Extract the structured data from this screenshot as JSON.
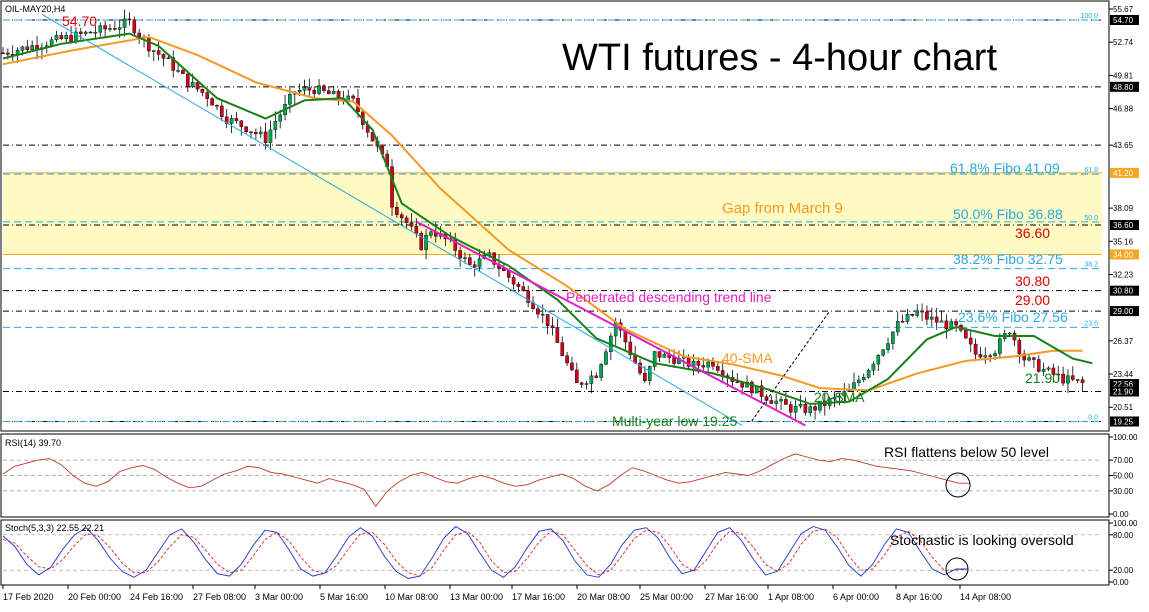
{
  "chart_data": {
    "type": "candlestick",
    "symbol_label": "OIL-MAY20,H4",
    "title": "WTI futures - 4-hour chart",
    "x_ticks": [
      "17 Feb 2020",
      "20 Feb 00:00",
      "24 Feb 16:00",
      "27 Feb 08:00",
      "3 Mar 00:00",
      "5 Mar 16:00",
      "10 Mar 08:00",
      "13 Mar 00:00",
      "17 Mar 16:00",
      "20 Mar 08:00",
      "25 Mar 00:00",
      "27 Mar 16:00",
      "1 Apr 08:00",
      "6 Apr 00:00",
      "8 Apr 16:00",
      "14 Apr 08:00"
    ],
    "price_axis": {
      "ylim": [
        18.5,
        56.2
      ],
      "ticks": [
        "55.67",
        "52.74",
        "49.81",
        "46.88",
        "43.65",
        "38.09",
        "35.16",
        "32.23",
        "26.37",
        "23.44",
        "20.51"
      ],
      "highlight_labels": [
        {
          "text": "54.70",
          "value": 54.7,
          "bg": "#000000"
        },
        {
          "text": "48.80",
          "value": 48.8,
          "bg": "#000000"
        },
        {
          "text": "41.20",
          "value": 41.2,
          "bg": "#f5a623"
        },
        {
          "text": "36.60",
          "value": 36.6,
          "bg": "#000000"
        },
        {
          "text": "34.00",
          "value": 34.0,
          "bg": "#f5a623"
        },
        {
          "text": "30.80",
          "value": 30.8,
          "bg": "#000000"
        },
        {
          "text": "29.00",
          "value": 29.0,
          "bg": "#000000"
        },
        {
          "text": "22.56",
          "value": 22.56,
          "bg": "#000000"
        },
        {
          "text": "21.90",
          "value": 21.9,
          "bg": "#000000"
        },
        {
          "text": "19.25",
          "value": 19.25,
          "bg": "#000000"
        }
      ]
    },
    "horizontal_levels": [
      54.7,
      48.8,
      43.65,
      36.6,
      30.8,
      29.0,
      21.9,
      19.25
    ],
    "fibo_levels": [
      {
        "value": 54.7,
        "tag": "100.0"
      },
      {
        "value": 41.09,
        "tag": "61.8"
      },
      {
        "value": 36.88,
        "tag": "50.0"
      },
      {
        "value": 32.75,
        "tag": "38.2"
      },
      {
        "value": 27.56,
        "tag": "23.6"
      },
      {
        "value": 19.25,
        "tag": "0.0"
      }
    ],
    "gap_zone": [
      34.0,
      41.2
    ],
    "annotations": {
      "top_high": "54.70",
      "fibo618": "61.8% Fibo 41.09",
      "gap": "Gap from March 9",
      "fibo50": "50.0% Fibo 36.88",
      "lvl3660": "36.60",
      "fibo382": "38.2% Fibo 32.75",
      "lvl3080": "30.80",
      "trendline": "Penetrated descending trend line",
      "lvl2900": "29.00",
      "fibo236": "23.6% Fibo 27.56",
      "sma40": "40-SMA",
      "lvl2190": "21.90",
      "sma20": "20-SMA",
      "low": "Multi-year low 19.25"
    },
    "close_path": [
      [
        0,
        51.8
      ],
      [
        8,
        52.6
      ],
      [
        16,
        53.4
      ],
      [
        22,
        54.0
      ],
      [
        26,
        54.5
      ],
      [
        30,
        52.4
      ],
      [
        34,
        51.0
      ],
      [
        38,
        49.2
      ],
      [
        42,
        48.0
      ],
      [
        46,
        46.0
      ],
      [
        50,
        45.2
      ],
      [
        54,
        44.2
      ],
      [
        56,
        45.8
      ],
      [
        58,
        47.0
      ],
      [
        60,
        48.4
      ],
      [
        64,
        48.6
      ],
      [
        68,
        48.0
      ],
      [
        72,
        47.5
      ],
      [
        75,
        45.0
      ],
      [
        78,
        42.5
      ],
      [
        79,
        42.0
      ],
      [
        80,
        38.5
      ],
      [
        83,
        36.8
      ],
      [
        86,
        34.8
      ],
      [
        88,
        36.2
      ],
      [
        92,
        35.0
      ],
      [
        96,
        33.0
      ],
      [
        100,
        33.8
      ],
      [
        104,
        32.0
      ],
      [
        108,
        30.2
      ],
      [
        112,
        28.0
      ],
      [
        116,
        24.3
      ],
      [
        118,
        22.5
      ],
      [
        122,
        23.5
      ],
      [
        126,
        28.0
      ],
      [
        128,
        26.3
      ],
      [
        132,
        22.6
      ],
      [
        134,
        25.2
      ],
      [
        138,
        24.8
      ],
      [
        142,
        24.2
      ],
      [
        146,
        24.5
      ],
      [
        150,
        23.0
      ],
      [
        154,
        22.2
      ],
      [
        158,
        21.2
      ],
      [
        162,
        20.4
      ],
      [
        166,
        20.3
      ],
      [
        170,
        21.0
      ],
      [
        174,
        21.9
      ],
      [
        178,
        24.0
      ],
      [
        182,
        26.5
      ],
      [
        184,
        27.8
      ],
      [
        188,
        28.9
      ],
      [
        190,
        28.4
      ],
      [
        194,
        27.8
      ],
      [
        196,
        27.5
      ],
      [
        200,
        25.2
      ],
      [
        204,
        25.6
      ],
      [
        207,
        27.4
      ],
      [
        210,
        24.8
      ],
      [
        214,
        23.8
      ],
      [
        218,
        23.0
      ],
      [
        222,
        22.6
      ]
    ],
    "sma20": [
      [
        0,
        51.3
      ],
      [
        12,
        52.6
      ],
      [
        26,
        53.5
      ],
      [
        32,
        52.4
      ],
      [
        44,
        47.8
      ],
      [
        54,
        46.0
      ],
      [
        62,
        47.6
      ],
      [
        70,
        47.8
      ],
      [
        76,
        45.0
      ],
      [
        82,
        38.5
      ],
      [
        92,
        35.6
      ],
      [
        104,
        33.0
      ],
      [
        114,
        30.0
      ],
      [
        122,
        26.6
      ],
      [
        134,
        24.4
      ],
      [
        146,
        23.5
      ],
      [
        158,
        22.0
      ],
      [
        166,
        20.8
      ],
      [
        174,
        21.0
      ],
      [
        182,
        23.0
      ],
      [
        190,
        26.5
      ],
      [
        196,
        27.6
      ],
      [
        204,
        26.8
      ],
      [
        212,
        26.8
      ],
      [
        220,
        24.8
      ],
      [
        224,
        24.4
      ]
    ],
    "sma40": [
      [
        0,
        50.8
      ],
      [
        14,
        52.0
      ],
      [
        30,
        53.2
      ],
      [
        40,
        51.6
      ],
      [
        52,
        49.2
      ],
      [
        64,
        47.8
      ],
      [
        72,
        47.5
      ],
      [
        80,
        44.5
      ],
      [
        90,
        39.8
      ],
      [
        104,
        34.4
      ],
      [
        116,
        31.2
      ],
      [
        128,
        27.4
      ],
      [
        140,
        25.0
      ],
      [
        150,
        24.3
      ],
      [
        160,
        23.3
      ],
      [
        168,
        22.2
      ],
      [
        178,
        22.0
      ],
      [
        188,
        23.5
      ],
      [
        198,
        24.6
      ],
      [
        208,
        25.0
      ],
      [
        216,
        25.5
      ],
      [
        222,
        25.5
      ]
    ],
    "rsi": {
      "label": "RSI(14) 39.70",
      "ticks": [
        "100.00",
        "70.00",
        "50.00",
        "30.00",
        "0.00"
      ],
      "ylim": [
        0,
        100
      ],
      "note": "RSI flattens below 50 level",
      "values": [
        52,
        62,
        66,
        70,
        72,
        64,
        50,
        40,
        36,
        42,
        55,
        60,
        63,
        58,
        48,
        40,
        34,
        36,
        44,
        52,
        56,
        62,
        60,
        54,
        52,
        48,
        44,
        40,
        46,
        42,
        38,
        32,
        10,
        30,
        42,
        50,
        54,
        48,
        42,
        40,
        46,
        50,
        46,
        40,
        36,
        38,
        44,
        48,
        52,
        46,
        36,
        30,
        38,
        50,
        60,
        56,
        50,
        44,
        40,
        42,
        46,
        50,
        54,
        52,
        50,
        56,
        64,
        72,
        78,
        74,
        70,
        68,
        72,
        70,
        66,
        62,
        60,
        58,
        56,
        52,
        48,
        44,
        40,
        40
      ]
    },
    "stoch": {
      "label": "Stoch(5,3,3) 22.55 22.21",
      "ticks": [
        "100.00",
        "80.00",
        "20.00",
        "0.00"
      ],
      "ylim": [
        0,
        100
      ],
      "note": "Stochastic is looking oversold",
      "k": [
        78,
        60,
        30,
        12,
        25,
        55,
        80,
        92,
        70,
        40,
        18,
        8,
        20,
        50,
        80,
        90,
        68,
        38,
        14,
        10,
        30,
        62,
        88,
        84,
        55,
        22,
        10,
        15,
        44,
        76,
        92,
        78,
        44,
        18,
        6,
        10,
        40,
        74,
        94,
        82,
        50,
        20,
        8,
        26,
        58,
        86,
        90,
        70,
        36,
        12,
        8,
        30,
        64,
        88,
        92,
        74,
        40,
        14,
        20,
        52,
        84,
        92,
        70,
        38,
        12,
        18,
        50,
        82,
        94,
        88,
        60,
        28,
        10,
        30,
        64,
        90,
        84,
        52,
        22,
        12,
        22,
        22
      ],
      "d": [
        72,
        66,
        44,
        26,
        22,
        38,
        62,
        82,
        78,
        58,
        32,
        16,
        16,
        34,
        60,
        80,
        76,
        54,
        30,
        16,
        20,
        44,
        72,
        84,
        70,
        42,
        20,
        14,
        28,
        56,
        82,
        84,
        64,
        36,
        16,
        10,
        24,
        54,
        80,
        86,
        68,
        36,
        16,
        18,
        40,
        68,
        86,
        80,
        54,
        28,
        12,
        20,
        46,
        74,
        88,
        84,
        60,
        30,
        18,
        36,
        66,
        86,
        82,
        58,
        30,
        18,
        32,
        64,
        86,
        90,
        76,
        44,
        20,
        22,
        46,
        76,
        86,
        70,
        42,
        20,
        20,
        22
      ]
    },
    "colors": {
      "candle_up": "#00a651",
      "candle_down": "#d0021b",
      "sma20": "#1a7f1a",
      "sma40": "#f29a25",
      "trendline": "#e020c8",
      "fibo": "#29aae2",
      "gap_fill": "#fff9c4",
      "gap_border": "#f5a623",
      "level_red": "#e00000",
      "rsi_line": "#c0392b",
      "stoch_k": "#2233cc",
      "stoch_d": "#dd2222",
      "annotation_green": "#1a7f1a",
      "annotation_orange": "#f29a25",
      "annotation_magenta": "#e020c8",
      "annotation_blue": "#29aae2"
    }
  }
}
